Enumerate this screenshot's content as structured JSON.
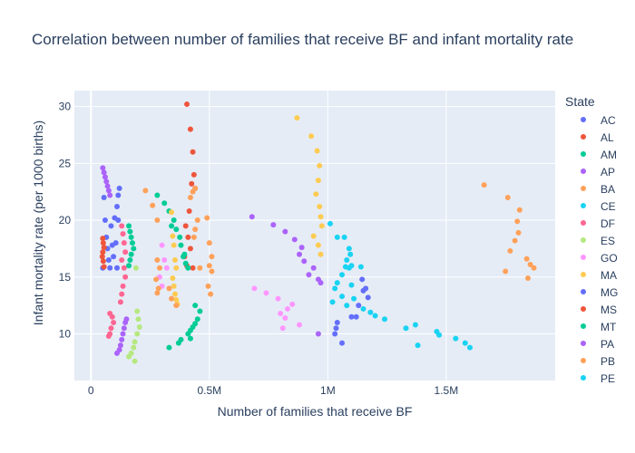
{
  "chart_data": {
    "type": "scatter",
    "title": "Correlation between number of families that receive BF and infant mortality rate",
    "xlabel": "Number of families that receive BF",
    "ylabel": "Infant mortality rate (per 1000 births)",
    "xlim": [
      -70000,
      1960000
    ],
    "ylim": [
      5.9,
      31.4
    ],
    "xticks": [
      {
        "value": 0,
        "label": "0"
      },
      {
        "value": 500000,
        "label": "0.5M"
      },
      {
        "value": 1000000,
        "label": "1M"
      },
      {
        "value": 1500000,
        "label": "1.5M"
      }
    ],
    "yticks": [
      {
        "value": 10,
        "label": "10"
      },
      {
        "value": 15,
        "label": "15"
      },
      {
        "value": 20,
        "label": "20"
      },
      {
        "value": 25,
        "label": "25"
      },
      {
        "value": 30,
        "label": "30"
      }
    ],
    "grid": true,
    "legend": {
      "title": "State",
      "position": "right"
    },
    "series": [
      {
        "name": "AC",
        "color": "#636efa",
        "points": [
          [
            50000,
            15.8
          ],
          [
            55000,
            22.0
          ],
          [
            60000,
            20.0
          ],
          [
            65000,
            18.5
          ],
          [
            70000,
            17.5
          ],
          [
            75000,
            16.5
          ],
          [
            80000,
            15.8
          ],
          [
            85000,
            19.5
          ],
          [
            90000,
            17.8
          ],
          [
            95000,
            16.8
          ],
          [
            100000,
            20.2
          ],
          [
            105000,
            18.0
          ],
          [
            110000,
            21.2
          ],
          [
            115000,
            20.0
          ],
          [
            120000,
            22.8
          ],
          [
            115000,
            22.2
          ],
          [
            110000,
            15.8
          ]
        ]
      },
      {
        "name": "AL",
        "color": "#EF553B",
        "points": [
          [
            405000,
            30.2
          ],
          [
            420000,
            28.0
          ],
          [
            430000,
            26.0
          ],
          [
            435000,
            24.0
          ],
          [
            425000,
            23.2
          ],
          [
            440000,
            22.8
          ],
          [
            415000,
            20.8
          ],
          [
            400000,
            19.5
          ],
          [
            410000,
            18.5
          ],
          [
            420000,
            17.5
          ],
          [
            395000,
            16.8
          ],
          [
            405000,
            16.0
          ],
          [
            430000,
            15.8
          ]
        ]
      },
      {
        "name": "AM",
        "color": "#00cc96",
        "points": [
          [
            280000,
            22.2
          ],
          [
            310000,
            21.5
          ],
          [
            330000,
            20.8
          ],
          [
            350000,
            20.0
          ],
          [
            360000,
            19.2
          ],
          [
            375000,
            18.5
          ],
          [
            380000,
            17.8
          ],
          [
            395000,
            17.0
          ],
          [
            400000,
            16.2
          ],
          [
            410000,
            15.8
          ],
          [
            390000,
            16.8
          ],
          [
            340000,
            19.5
          ]
        ]
      },
      {
        "name": "AP",
        "color": "#ab63fa",
        "points": [
          [
            50000,
            24.6
          ],
          [
            55000,
            24.2
          ],
          [
            60000,
            23.8
          ],
          [
            65000,
            23.4
          ],
          [
            70000,
            23.0
          ],
          [
            75000,
            22.6
          ],
          [
            80000,
            22.2
          ]
        ]
      },
      {
        "name": "BA",
        "color": "#FFA15A",
        "points": [
          [
            1660000,
            23.1
          ],
          [
            1760000,
            22.0
          ],
          [
            1810000,
            20.9
          ],
          [
            1800000,
            19.9
          ],
          [
            1805000,
            18.9
          ],
          [
            1790000,
            18.2
          ],
          [
            1770000,
            17.3
          ],
          [
            1840000,
            16.6
          ],
          [
            1855000,
            16.1
          ],
          [
            1870000,
            15.8
          ],
          [
            1750000,
            15.5
          ],
          [
            1845000,
            14.9
          ]
        ]
      },
      {
        "name": "CE",
        "color": "#19d3f3",
        "points": [
          [
            1010000,
            19.7
          ],
          [
            1040000,
            18.5
          ],
          [
            1070000,
            18.5
          ],
          [
            1090000,
            17.5
          ],
          [
            1095000,
            17.0
          ],
          [
            1080000,
            16.5
          ],
          [
            1100000,
            16.0
          ],
          [
            1075000,
            15.9
          ],
          [
            1090000,
            15.8
          ],
          [
            1140000,
            15.9
          ],
          [
            1060000,
            15.2
          ],
          [
            1040000,
            14.5
          ],
          [
            1030000,
            14.0
          ],
          [
            1100000,
            14.3
          ],
          [
            1060000,
            13.3
          ],
          [
            1110000,
            13.1
          ],
          [
            1020000,
            12.8
          ],
          [
            1080000,
            12.5
          ],
          [
            1150000,
            12.2
          ],
          [
            1180000,
            11.9
          ],
          [
            1200000,
            11.6
          ],
          [
            1240000,
            11.3
          ],
          [
            1330000,
            10.5
          ],
          [
            1370000,
            10.8
          ],
          [
            1460000,
            10.2
          ],
          [
            1470000,
            9.9
          ],
          [
            1540000,
            9.6
          ],
          [
            1580000,
            9.2
          ],
          [
            1600000,
            8.8
          ],
          [
            1380000,
            9.0
          ]
        ]
      },
      {
        "name": "DF",
        "color": "#FF6692",
        "points": [
          [
            130000,
            19.5
          ],
          [
            135000,
            18.8
          ],
          [
            140000,
            18.0
          ],
          [
            145000,
            17.2
          ],
          [
            130000,
            16.5
          ],
          [
            140000,
            15.8
          ],
          [
            145000,
            15.0
          ],
          [
            135000,
            14.2
          ],
          [
            130000,
            13.5
          ],
          [
            125000,
            12.8
          ],
          [
            80000,
            11.8
          ],
          [
            90000,
            11.5
          ],
          [
            95000,
            11.0
          ],
          [
            85000,
            10.5
          ],
          [
            80000,
            10.0
          ],
          [
            75000,
            9.8
          ]
        ]
      },
      {
        "name": "ES",
        "color": "#B6E880",
        "points": [
          [
            190000,
            15.8
          ],
          [
            195000,
            12.0
          ],
          [
            200000,
            11.3
          ],
          [
            205000,
            10.6
          ],
          [
            195000,
            10.0
          ],
          [
            185000,
            9.3
          ],
          [
            180000,
            8.8
          ],
          [
            170000,
            8.3
          ],
          [
            160000,
            8.0
          ],
          [
            185000,
            7.6
          ]
        ]
      },
      {
        "name": "GO",
        "color": "#FF97FF",
        "points": [
          [
            690000,
            14.0
          ],
          [
            740000,
            13.6
          ],
          [
            790000,
            13.1
          ],
          [
            850000,
            12.6
          ],
          [
            830000,
            12.2
          ],
          [
            800000,
            11.8
          ],
          [
            820000,
            11.4
          ],
          [
            880000,
            10.8
          ],
          [
            810000,
            10.5
          ],
          [
            300000,
            17.8
          ],
          [
            310000,
            16.5
          ],
          [
            320000,
            15.8
          ],
          [
            290000,
            15.0
          ],
          [
            300000,
            14.2
          ]
        ]
      },
      {
        "name": "MA",
        "color": "#FECB52",
        "points": [
          [
            870000,
            29.0
          ],
          [
            930000,
            27.4
          ],
          [
            955000,
            26.1
          ],
          [
            965000,
            24.8
          ],
          [
            960000,
            23.5
          ],
          [
            950000,
            22.3
          ],
          [
            965000,
            21.2
          ],
          [
            970000,
            20.3
          ],
          [
            975000,
            19.5
          ],
          [
            940000,
            18.6
          ],
          [
            960000,
            17.8
          ],
          [
            970000,
            17.0
          ],
          [
            340000,
            20.7
          ],
          [
            345000,
            18.6
          ],
          [
            350000,
            17.8
          ],
          [
            355000,
            16.5
          ],
          [
            360000,
            15.8
          ],
          [
            345000,
            14.9
          ],
          [
            350000,
            14.2
          ],
          [
            355000,
            13.5
          ],
          [
            360000,
            13.0
          ],
          [
            365000,
            12.6
          ]
        ]
      },
      {
        "name": "MG",
        "color": "#636efa",
        "points": [
          [
            1040000,
            11.0
          ],
          [
            1035000,
            10.5
          ],
          [
            1030000,
            10.0
          ],
          [
            1060000,
            9.2
          ],
          [
            1100000,
            11.5
          ],
          [
            1120000,
            11.5
          ],
          [
            1130000,
            12.5
          ],
          [
            1150000,
            13.8
          ],
          [
            1170000,
            13.2
          ],
          [
            1145000,
            14.8
          ],
          [
            1160000,
            14.0
          ]
        ]
      },
      {
        "name": "MS",
        "color": "#EF553B",
        "points": [
          [
            50000,
            18.4
          ],
          [
            52000,
            18.0
          ],
          [
            55000,
            17.6
          ],
          [
            50000,
            17.2
          ],
          [
            48000,
            16.8
          ],
          [
            52000,
            16.4
          ],
          [
            55000,
            15.9
          ]
        ]
      },
      {
        "name": "MT",
        "color": "#00cc96",
        "points": [
          [
            160000,
            19.5
          ],
          [
            165000,
            19.0
          ],
          [
            170000,
            18.5
          ],
          [
            175000,
            18.0
          ],
          [
            180000,
            17.5
          ],
          [
            170000,
            17.0
          ],
          [
            165000,
            16.5
          ],
          [
            160000,
            16.0
          ],
          [
            330000,
            8.8
          ],
          [
            370000,
            9.2
          ],
          [
            380000,
            9.5
          ],
          [
            410000,
            10.0
          ],
          [
            420000,
            10.3
          ],
          [
            430000,
            10.6
          ],
          [
            440000,
            10.9
          ],
          [
            450000,
            11.3
          ],
          [
            460000,
            12.0
          ],
          [
            440000,
            12.5
          ],
          [
            420000,
            9.6
          ]
        ]
      },
      {
        "name": "PA",
        "color": "#ab63fa",
        "points": [
          [
            680000,
            20.3
          ],
          [
            770000,
            19.6
          ],
          [
            820000,
            19.0
          ],
          [
            860000,
            18.3
          ],
          [
            890000,
            17.6
          ],
          [
            880000,
            17.0
          ],
          [
            900000,
            16.4
          ],
          [
            940000,
            15.8
          ],
          [
            920000,
            15.2
          ],
          [
            970000,
            14.5
          ],
          [
            960000,
            14.8
          ],
          [
            110000,
            8.3
          ],
          [
            120000,
            8.6
          ],
          [
            125000,
            9.0
          ],
          [
            130000,
            9.5
          ],
          [
            135000,
            10.0
          ],
          [
            140000,
            10.5
          ],
          [
            145000,
            11.0
          ],
          [
            150000,
            11.3
          ],
          [
            960000,
            10.0
          ]
        ]
      },
      {
        "name": "PB",
        "color": "#FFA15A",
        "points": [
          [
            230000,
            22.6
          ],
          [
            260000,
            21.3
          ],
          [
            280000,
            20.0
          ],
          [
            280000,
            16.5
          ],
          [
            290000,
            15.8
          ],
          [
            275000,
            14.8
          ],
          [
            285000,
            14.0
          ],
          [
            280000,
            13.6
          ],
          [
            330000,
            14.0
          ],
          [
            340000,
            13.1
          ],
          [
            360000,
            12.5
          ],
          [
            420000,
            22.0
          ],
          [
            430000,
            22.5
          ],
          [
            440000,
            22.8
          ],
          [
            490000,
            20.2
          ],
          [
            500000,
            18.0
          ],
          [
            510000,
            16.8
          ],
          [
            500000,
            16.0
          ],
          [
            510000,
            15.5
          ],
          [
            495000,
            14.2
          ],
          [
            505000,
            13.5
          ],
          [
            460000,
            15.8
          ],
          [
            450000,
            20.0
          ],
          [
            440000,
            19.2
          ],
          [
            435000,
            18.5
          ]
        ]
      },
      {
        "name": "PE",
        "color": "#19d3f3",
        "points": []
      }
    ]
  }
}
